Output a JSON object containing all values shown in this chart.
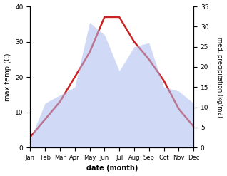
{
  "months": [
    "Jan",
    "Feb",
    "Mar",
    "Apr",
    "May",
    "Jun",
    "Jul",
    "Aug",
    "Sep",
    "Oct",
    "Nov",
    "Dec"
  ],
  "temp": [
    3,
    8,
    13,
    20,
    27,
    37,
    37,
    30,
    25,
    19,
    11,
    6
  ],
  "precip": [
    2,
    11,
    13,
    15,
    31,
    28,
    19,
    25,
    26,
    15,
    14,
    11
  ],
  "temp_color": "#cc2222",
  "precip_color": "#aabbee",
  "precip_fill_alpha": 0.55,
  "xlabel": "date (month)",
  "ylabel_left": "max temp (C)",
  "ylabel_right": "med. precipitation (kg/m2)",
  "ylim_left": [
    0,
    40
  ],
  "ylim_right": [
    0,
    35
  ],
  "yticks_left": [
    0,
    10,
    20,
    30,
    40
  ],
  "yticks_right": [
    0,
    5,
    10,
    15,
    20,
    25,
    30,
    35
  ],
  "fig_width": 3.18,
  "fig_height": 2.47,
  "dpi": 100
}
